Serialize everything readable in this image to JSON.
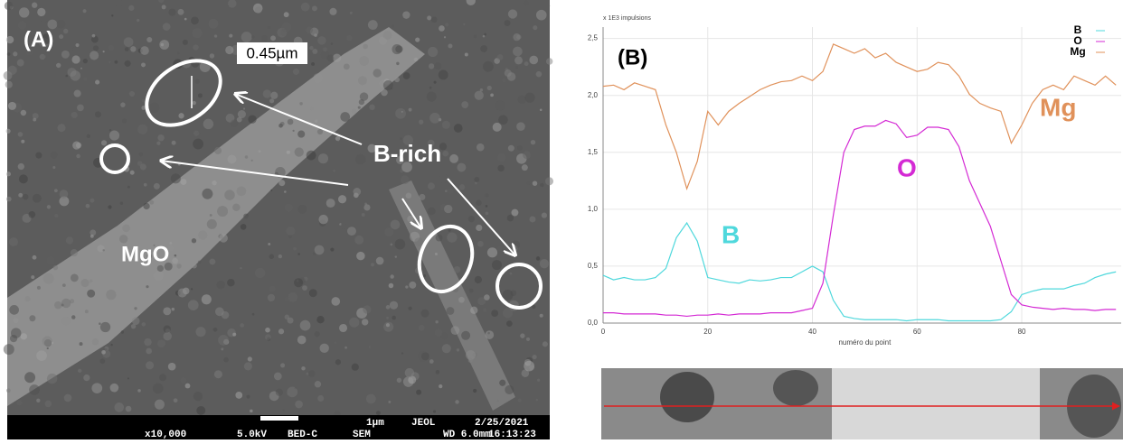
{
  "panel_a": {
    "label": "(A)",
    "measure": "0.45µm",
    "b_rich": "B-rich",
    "mgo": "MgO",
    "footer": [
      "x10,000",
      "5.0kV",
      "BED-C",
      "1µm",
      "SEM",
      "JEOL",
      "WD 6.0mm",
      "2/25/2021",
      "16:13:23"
    ]
  },
  "chart_data": {
    "type": "line",
    "panel_label": "(B)",
    "ylabel": "x 1E3 impulsions",
    "xlabel": "numéro du point",
    "x": [
      0,
      2,
      4,
      6,
      8,
      10,
      12,
      14,
      16,
      18,
      20,
      22,
      24,
      26,
      28,
      30,
      32,
      34,
      36,
      38,
      40,
      42,
      44,
      46,
      48,
      50,
      52,
      54,
      56,
      58,
      60,
      62,
      64,
      66,
      68,
      70,
      72,
      74,
      76,
      78,
      80,
      82,
      84,
      86,
      88,
      90,
      92,
      94,
      96,
      98
    ],
    "series": [
      {
        "name": "B",
        "color": "#4fd8dc",
        "values": [
          0.42,
          0.38,
          0.4,
          0.38,
          0.38,
          0.4,
          0.48,
          0.75,
          0.88,
          0.72,
          0.4,
          0.38,
          0.36,
          0.35,
          0.38,
          0.37,
          0.38,
          0.4,
          0.4,
          0.45,
          0.5,
          0.45,
          0.2,
          0.06,
          0.04,
          0.03,
          0.03,
          0.03,
          0.03,
          0.02,
          0.03,
          0.03,
          0.03,
          0.02,
          0.02,
          0.02,
          0.02,
          0.02,
          0.03,
          0.1,
          0.25,
          0.28,
          0.3,
          0.3,
          0.3,
          0.33,
          0.35,
          0.4,
          0.43,
          0.45
        ]
      },
      {
        "name": "O",
        "color": "#d42ad4",
        "values": [
          0.09,
          0.09,
          0.08,
          0.08,
          0.08,
          0.08,
          0.07,
          0.07,
          0.06,
          0.07,
          0.07,
          0.08,
          0.07,
          0.08,
          0.08,
          0.08,
          0.09,
          0.09,
          0.09,
          0.11,
          0.13,
          0.35,
          0.95,
          1.5,
          1.7,
          1.73,
          1.73,
          1.78,
          1.75,
          1.63,
          1.65,
          1.72,
          1.72,
          1.7,
          1.55,
          1.25,
          1.05,
          0.85,
          0.55,
          0.25,
          0.16,
          0.14,
          0.13,
          0.12,
          0.13,
          0.12,
          0.12,
          0.11,
          0.12,
          0.12
        ]
      },
      {
        "name": "Mg",
        "color": "#e0915a",
        "values": [
          2.08,
          2.09,
          2.05,
          2.11,
          2.08,
          2.05,
          1.74,
          1.5,
          1.18,
          1.42,
          1.86,
          1.74,
          1.86,
          1.93,
          1.99,
          2.05,
          2.09,
          2.12,
          2.13,
          2.17,
          2.13,
          2.21,
          2.45,
          2.41,
          2.37,
          2.41,
          2.33,
          2.37,
          2.29,
          2.25,
          2.21,
          2.23,
          2.29,
          2.27,
          2.17,
          2.01,
          1.93,
          1.89,
          1.86,
          1.58,
          1.74,
          1.93,
          2.05,
          2.09,
          2.05,
          2.17,
          2.13,
          2.09,
          2.17,
          2.09
        ]
      }
    ],
    "xlim": [
      0,
      99
    ],
    "ylim": [
      0,
      2.6
    ],
    "xticks": [
      0,
      20,
      40,
      60,
      80
    ],
    "yticks": [
      {
        "value": 0,
        "label": "0,0"
      },
      {
        "value": 0.5,
        "label": "0,5"
      },
      {
        "value": 1,
        "label": "1,0"
      },
      {
        "value": 1.5,
        "label": "1,5"
      },
      {
        "value": 2,
        "label": "2,0"
      },
      {
        "value": 2.5,
        "label": "2,5"
      }
    ],
    "grid": true
  }
}
